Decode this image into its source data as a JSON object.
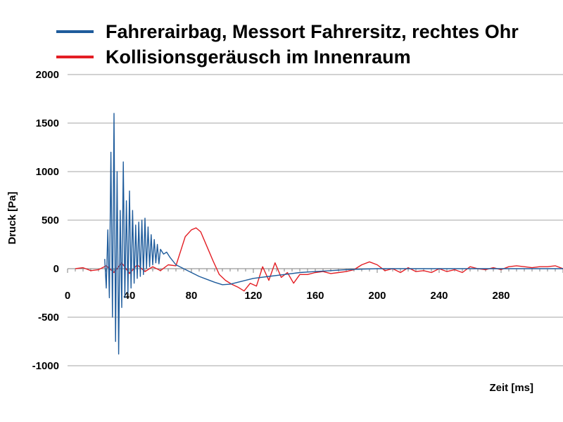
{
  "chart_data": {
    "type": "line",
    "title": "",
    "xlabel": "Zeit [ms]",
    "ylabel": "Druck [Pa]",
    "xlim": [
      0,
      320
    ],
    "ylim": [
      -1000,
      2000
    ],
    "x_ticks": [
      0,
      40,
      80,
      120,
      160,
      200,
      240,
      280
    ],
    "y_ticks": [
      2000,
      1500,
      1000,
      500,
      0,
      -500,
      -1000
    ],
    "grid": true,
    "legend_position": "top",
    "series": [
      {
        "name": "Fahrerairbag, Messort Fahrersitz, rechtes Ohr",
        "color": "#1f5c9c",
        "x": [
          24,
          25,
          26,
          27,
          28,
          29,
          30,
          31,
          32,
          33,
          34,
          35,
          36,
          37,
          38,
          39,
          40,
          41,
          42,
          43,
          44,
          45,
          46,
          47,
          48,
          49,
          50,
          51,
          52,
          53,
          54,
          55,
          56,
          57,
          58,
          59,
          60,
          62,
          64,
          66,
          68,
          70,
          75,
          80,
          85,
          90,
          95,
          100,
          105,
          110,
          115,
          120,
          130,
          140,
          150,
          160,
          170,
          180,
          190,
          200,
          210,
          220,
          240,
          260,
          280,
          300,
          320
        ],
        "y": [
          100,
          -200,
          400,
          -300,
          1200,
          -500,
          1600,
          -750,
          1000,
          -880,
          600,
          -400,
          1100,
          -300,
          700,
          -250,
          800,
          -200,
          600,
          -150,
          450,
          -100,
          480,
          -80,
          500,
          -60,
          520,
          0,
          430,
          20,
          350,
          40,
          300,
          60,
          250,
          50,
          200,
          150,
          170,
          120,
          80,
          40,
          0,
          -40,
          -80,
          -110,
          -140,
          -165,
          -160,
          -140,
          -120,
          -100,
          -80,
          -60,
          -40,
          -30,
          -20,
          -10,
          -5,
          0,
          0,
          0,
          0,
          0,
          0,
          0,
          0
        ]
      },
      {
        "name": "Kollisionsgeräusch im Innenraum",
        "color": "#e31e24",
        "x": [
          5,
          10,
          15,
          20,
          25,
          30,
          35,
          40,
          45,
          50,
          55,
          60,
          65,
          70,
          73,
          76,
          80,
          83,
          86,
          90,
          94,
          98,
          102,
          106,
          110,
          114,
          118,
          122,
          126,
          130,
          134,
          138,
          142,
          146,
          150,
          155,
          160,
          165,
          170,
          175,
          180,
          185,
          190,
          195,
          200,
          205,
          210,
          215,
          220,
          225,
          230,
          235,
          240,
          245,
          250,
          255,
          260,
          265,
          270,
          275,
          280,
          285,
          290,
          295,
          300,
          305,
          310,
          315,
          320
        ],
        "y": [
          0,
          10,
          -20,
          -10,
          30,
          -40,
          60,
          -50,
          40,
          -30,
          20,
          -20,
          40,
          30,
          180,
          330,
          400,
          420,
          380,
          230,
          80,
          -60,
          -120,
          -160,
          -190,
          -230,
          -150,
          -180,
          20,
          -120,
          60,
          -90,
          -40,
          -150,
          -60,
          -60,
          -40,
          -30,
          -50,
          -40,
          -30,
          -10,
          40,
          70,
          40,
          -20,
          0,
          -40,
          10,
          -30,
          -20,
          -40,
          0,
          -30,
          -10,
          -40,
          20,
          0,
          -10,
          10,
          -10,
          20,
          30,
          20,
          10,
          20,
          20,
          30,
          0
        ]
      }
    ]
  }
}
